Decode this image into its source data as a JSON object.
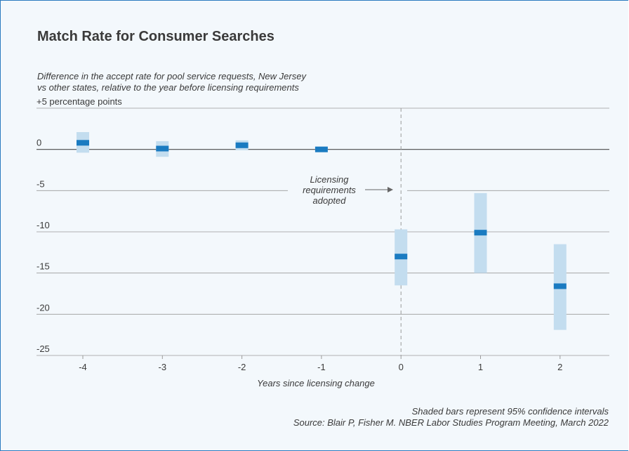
{
  "title": "Match Rate for Consumer Searches",
  "subtitle_lines": [
    "Difference in the accept rate for pool service requests, New Jersey",
    "vs other states, relative to the year before licensing requirements"
  ],
  "footnotes": [
    "Shaded bars represent 95% confidence intervals",
    "Source: Blair P, Fisher M. NBER Labor Studies Program Meeting, March 2022"
  ],
  "colors": {
    "point": "#1a7bc1",
    "ci": "#c3ddef",
    "grid": "#9a9a9a",
    "zero": "#4a4a4a",
    "text": "#3a3a3a"
  },
  "chart_data": {
    "type": "scatter",
    "title": "Match Rate for Consumer Searches",
    "xlabel": "Years since licensing change",
    "ylabel": "",
    "ylim": [
      -25,
      5
    ],
    "yticks": [
      5,
      0,
      -5,
      -10,
      -15,
      -20,
      -25
    ],
    "ytick_labels": [
      "+5 percentage points",
      "0",
      "-5",
      "-10",
      "-15",
      "-20",
      "-25"
    ],
    "xticks": [
      -4,
      -3,
      -2,
      -1,
      0,
      1,
      2
    ],
    "xtick_labels": [
      "-4",
      "-3",
      "-2",
      "-1",
      "0",
      "1",
      "2"
    ],
    "grid": true,
    "series": [
      {
        "x": [
          -4,
          -3,
          -2,
          -1,
          0,
          1,
          2
        ],
        "values": [
          0.8,
          0.1,
          0.5,
          0.0,
          -13.0,
          -10.1,
          -16.6
        ],
        "ci_low": [
          -0.4,
          -0.9,
          -0.1,
          -0.1,
          -16.5,
          -15.0,
          -21.9
        ],
        "ci_high": [
          2.1,
          1.0,
          1.1,
          0.1,
          -9.7,
          -5.3,
          -11.5
        ]
      }
    ],
    "annotations": [
      {
        "text_lines": [
          "Licensing",
          "requirements",
          "adopted"
        ],
        "x": 0
      }
    ]
  }
}
